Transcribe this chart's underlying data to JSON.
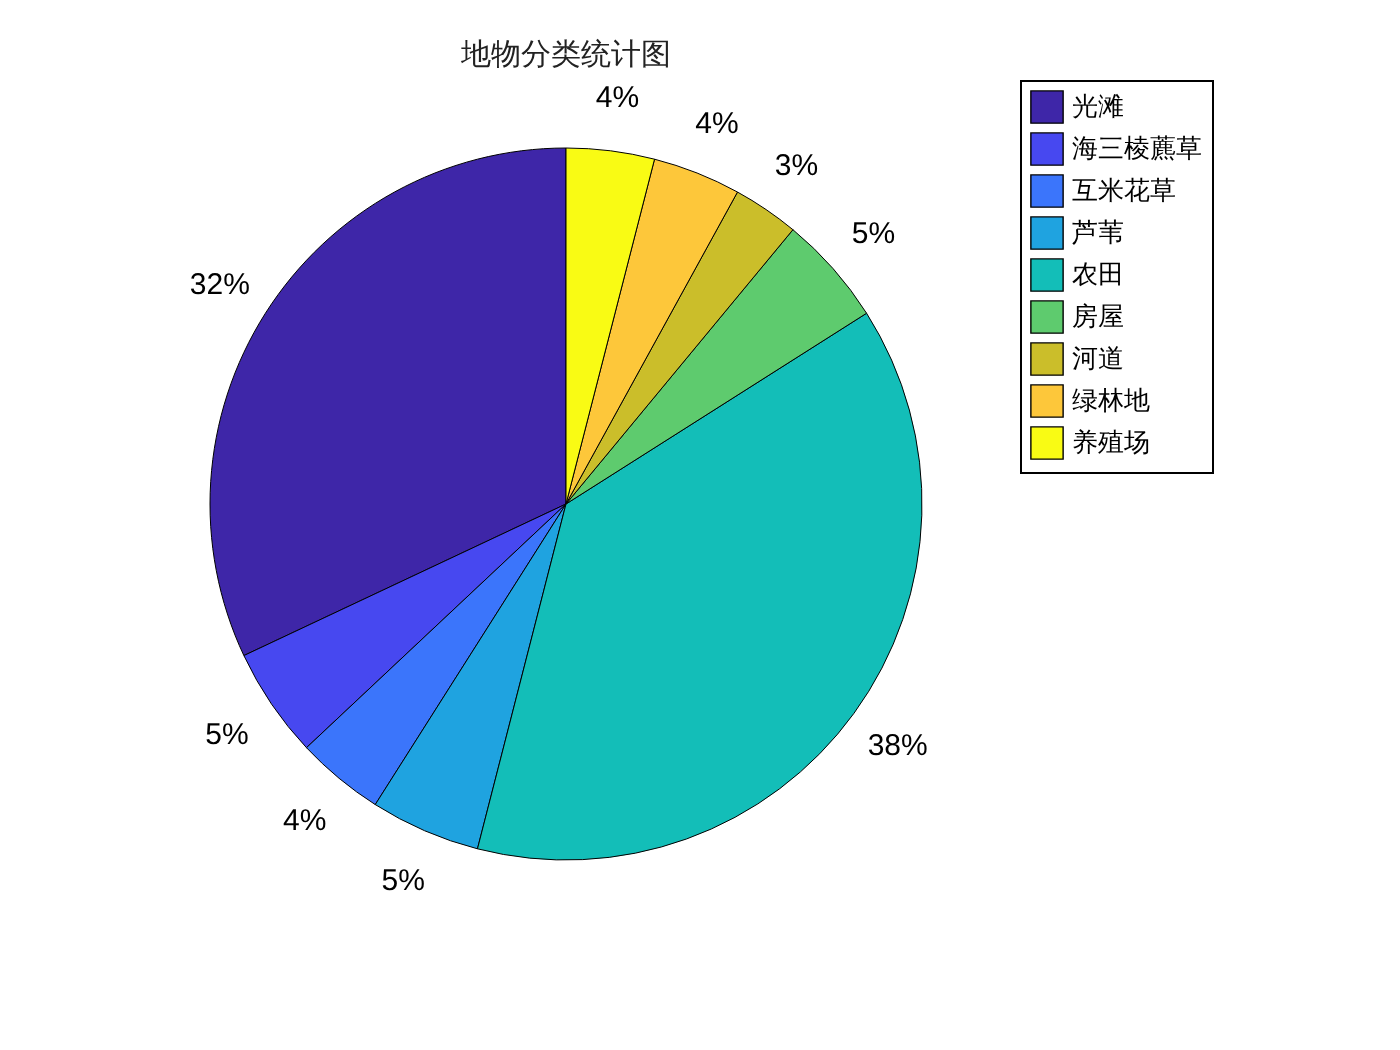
{
  "chart_data": {
    "type": "pie",
    "title": "地物分类统计图",
    "categories": [
      "光滩",
      "海三棱藨草",
      "互米花草",
      "芦苇",
      "农田",
      "房屋",
      "河道",
      "绿林地",
      "养殖场"
    ],
    "values": [
      32,
      5,
      4,
      5,
      38,
      5,
      3,
      4,
      4
    ],
    "value_labels": [
      "32%",
      "5%",
      "4%",
      "5%",
      "38%",
      "5%",
      "3%",
      "4%",
      "4%"
    ],
    "colors": [
      "#3e26a8",
      "#4748f0",
      "#3b75fb",
      "#1fa3e0",
      "#13beb8",
      "#5ecb6e",
      "#cbbe2a",
      "#fdc73a",
      "#f9fb14"
    ],
    "legend": "top right"
  }
}
